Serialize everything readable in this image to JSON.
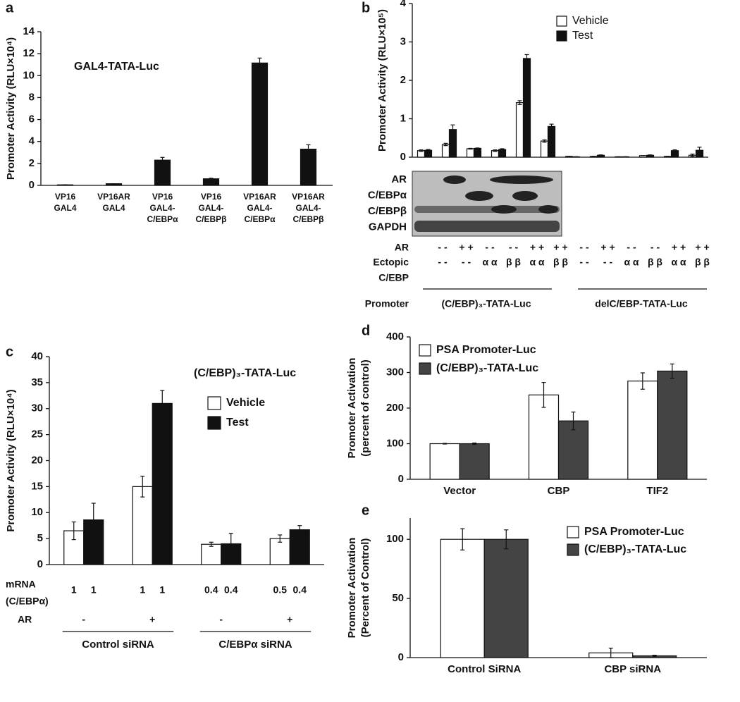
{
  "chart_data": [
    {
      "type": "bar",
      "panel": "a",
      "annotation": "GAL4-TATA-Luc",
      "ylabel": "Promoter Activity (RLU×10⁴)",
      "categories": [
        [
          "VP16",
          "GAL4"
        ],
        [
          "VP16AR",
          "GAL4"
        ],
        [
          "VP16",
          "GAL4-",
          "C/EBPα"
        ],
        [
          "VP16",
          "GAL4-",
          "C/EBPβ"
        ],
        [
          "VP16AR",
          "GAL4-",
          "C/EBPα"
        ],
        [
          "VP16AR",
          "GAL4-",
          "C/EBPβ"
        ]
      ],
      "values": [
        0.05,
        0.15,
        2.3,
        0.6,
        11.15,
        3.3
      ],
      "errors": [
        0,
        0,
        0.25,
        0.05,
        0.45,
        0.4
      ],
      "color": "#111111",
      "ylim": [
        0,
        14
      ],
      "yticks": [
        0,
        2,
        4,
        6,
        8,
        10,
        12,
        14
      ]
    },
    {
      "type": "bar",
      "panel": "b",
      "ylabel": "Promoter Activity (RLU×10⁵)",
      "series": [
        {
          "name": "Vehicle",
          "color": "#ffffff",
          "values": [
            0.17,
            0.33,
            0.22,
            0.17,
            1.42,
            0.42,
            0.02,
            0.02,
            0.01,
            0.04,
            0.02,
            0.05
          ],
          "errors": [
            0.02,
            0.03,
            0.01,
            0.02,
            0.05,
            0.03,
            0,
            0,
            0,
            0,
            0,
            0.03
          ]
        },
        {
          "name": "Test",
          "color": "#111111",
          "values": [
            0.18,
            0.72,
            0.23,
            0.2,
            2.57,
            0.8,
            0.01,
            0.05,
            0.01,
            0.05,
            0.17,
            0.18
          ],
          "errors": [
            0.02,
            0.12,
            0.01,
            0.02,
            0.1,
            0.06,
            0,
            0.01,
            0,
            0.01,
            0.02,
            0.08
          ]
        }
      ],
      "ylim": [
        0,
        4
      ],
      "yticks": [
        0,
        1,
        2,
        3,
        4
      ],
      "blot_labels": [
        "AR",
        "C/EBPα",
        "C/EBPβ",
        "GAPDH"
      ],
      "ar_row": {
        "label": "AR",
        "values": [
          "- -",
          "+ +",
          "- -",
          "- -",
          "+ +",
          "+ +",
          "- -",
          "+ +",
          "- -",
          "- -",
          "+ +",
          "+ +"
        ]
      },
      "ectopic_row": {
        "label": [
          "Ectopic",
          "C/EBP"
        ],
        "values": [
          "- -",
          "- -",
          "α α",
          "β β",
          "α α",
          "β β",
          "- -",
          "- -",
          "α α",
          "β β",
          "α α",
          "β β"
        ]
      },
      "promoter_row": {
        "label": "Promoter",
        "groups": [
          "(C/EBP)₃-TATA-Luc",
          "delC/EBP-TATA-Luc"
        ]
      }
    },
    {
      "type": "bar",
      "panel": "c",
      "annotation": "(C/EBP)₃-TATA-Luc",
      "ylabel": "Promoter Activity (RLU×10⁴)",
      "series": [
        {
          "name": "Vehicle",
          "color": "#ffffff",
          "values": [
            6.5,
            15,
            3.9,
            5.0
          ],
          "errors": [
            1.7,
            2,
            0.4,
            0.7
          ]
        },
        {
          "name": "Test",
          "color": "#111111",
          "values": [
            8.6,
            31,
            4,
            6.7
          ],
          "errors": [
            3.2,
            2.5,
            2,
            0.8
          ]
        }
      ],
      "ylim": [
        0,
        40
      ],
      "yticks": [
        0,
        5,
        10,
        15,
        20,
        25,
        30,
        35,
        40
      ],
      "mrna_row": {
        "label": [
          "mRNA",
          "(C/EBPα)"
        ],
        "values": [
          1,
          1,
          1,
          1,
          0.4,
          0.4,
          0.5,
          0.4
        ]
      },
      "ar_row": {
        "label": "AR",
        "values": [
          "-",
          "+",
          "-",
          "+"
        ]
      },
      "groups": [
        "Control siRNA",
        "C/EBPα siRNA"
      ]
    },
    {
      "type": "bar",
      "panel": "d",
      "ylabel": [
        "Promoter Activation",
        "(percent of control)"
      ],
      "categories": [
        "Vector",
        "CBP",
        "TIF2"
      ],
      "series": [
        {
          "name": "PSA Promoter-Luc",
          "color": "#ffffff",
          "values": [
            100,
            237,
            276
          ],
          "errors": [
            1,
            35,
            23
          ]
        },
        {
          "name": "(C/EBP)₃-TATA-Luc",
          "color": "#444444",
          "values": [
            100,
            164,
            304
          ],
          "errors": [
            2,
            25,
            20
          ]
        }
      ],
      "ylim": [
        0,
        400
      ],
      "yticks": [
        0,
        100,
        200,
        300,
        400
      ]
    },
    {
      "type": "bar",
      "panel": "e",
      "ylabel": [
        "Promoter Activation",
        "(Percent of Control)"
      ],
      "categories": [
        "Control SiRNA",
        "CBP siRNA"
      ],
      "series": [
        {
          "name": "PSA Promoter-Luc",
          "color": "#ffffff",
          "values": [
            100,
            4
          ],
          "errors": [
            9,
            4
          ]
        },
        {
          "name": "(C/EBP)₃-TATA-Luc",
          "color": "#444444",
          "values": [
            100,
            1.5
          ],
          "errors": [
            8,
            0.5
          ]
        }
      ],
      "ylim": [
        0,
        118
      ],
      "yticks": [
        0,
        50,
        100
      ]
    }
  ]
}
